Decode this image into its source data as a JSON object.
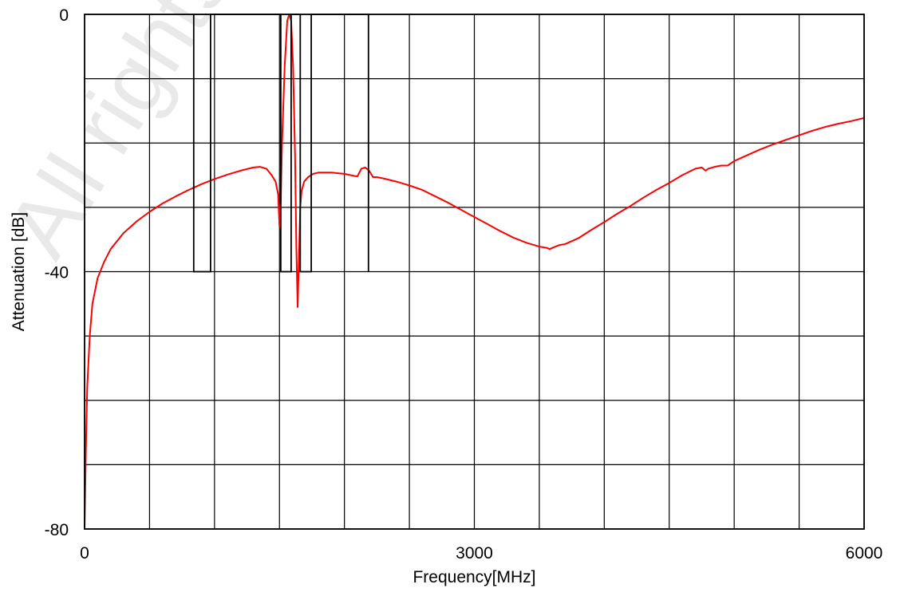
{
  "watermark": "All rights reserved",
  "chart_data": {
    "type": "line",
    "title": "",
    "xlabel": "Frequency[MHz]",
    "ylabel": "Attenuation [dB]",
    "xlim": [
      0,
      6000
    ],
    "ylim": [
      -80,
      0
    ],
    "x_ticks": [
      0,
      500,
      1000,
      1500,
      2000,
      2500,
      3000,
      3500,
      4000,
      4500,
      5000,
      5500,
      6000
    ],
    "x_tick_labels": [
      "0",
      "3000",
      "6000"
    ],
    "x_tick_label_values": [
      0,
      3000,
      6000
    ],
    "y_ticks": [
      -80,
      -70,
      -60,
      -50,
      -40,
      -30,
      -20,
      -10,
      0
    ],
    "y_tick_labels": [
      "-80",
      "-40",
      "0"
    ],
    "y_tick_label_values": [
      -80,
      -40,
      0
    ],
    "grid": true,
    "legend": "none",
    "series": [
      {
        "color": "#ff0000",
        "x": [
          0,
          10,
          20,
          40,
          60,
          100,
          150,
          200,
          300,
          400,
          500,
          600,
          700,
          800,
          900,
          1000,
          1100,
          1200,
          1300,
          1350,
          1400,
          1440,
          1470,
          1490,
          1500,
          1510,
          1520,
          1540,
          1560,
          1575,
          1590,
          1605,
          1620,
          1630,
          1640,
          1650,
          1660,
          1670,
          1690,
          1720,
          1760,
          1800,
          1850,
          1900,
          1950,
          2000,
          2050,
          2100,
          2130,
          2160,
          2190,
          2220,
          2250,
          2300,
          2400,
          2500,
          2600,
          2700,
          2800,
          2900,
          3000,
          3100,
          3200,
          3300,
          3400,
          3500,
          3560,
          3580,
          3600,
          3650,
          3700,
          3800,
          3900,
          4000,
          4100,
          4200,
          4300,
          4400,
          4500,
          4600,
          4700,
          4750,
          4780,
          4800,
          4850,
          4900,
          4950,
          5000,
          5100,
          5200,
          5300,
          5400,
          5500,
          5600,
          5700,
          5800,
          5900,
          6000
        ],
        "values": [
          -80,
          -68,
          -58,
          -50,
          -45,
          -41,
          -38.5,
          -36.5,
          -34,
          -32.2,
          -30.7,
          -29.4,
          -28.3,
          -27.3,
          -26.4,
          -25.6,
          -24.9,
          -24.3,
          -23.8,
          -23.7,
          -24.0,
          -25.0,
          -26.0,
          -28.0,
          -33.0,
          -29.0,
          -20.0,
          -8.0,
          -1.0,
          0.0,
          -1.0,
          -8.0,
          -22.0,
          -36.0,
          -45.5,
          -38.0,
          -30.0,
          -27.5,
          -26.0,
          -25.3,
          -24.8,
          -24.6,
          -24.6,
          -24.6,
          -24.7,
          -24.8,
          -25.0,
          -25.2,
          -24.0,
          -23.8,
          -24.3,
          -25.3,
          -25.3,
          -25.5,
          -26.0,
          -26.6,
          -27.3,
          -28.3,
          -29.3,
          -30.4,
          -31.5,
          -32.6,
          -33.7,
          -34.7,
          -35.5,
          -36.1,
          -36.3,
          -36.5,
          -36.3,
          -35.9,
          -35.7,
          -34.8,
          -33.5,
          -32.3,
          -31.0,
          -29.8,
          -28.5,
          -27.3,
          -26.2,
          -25.0,
          -24.0,
          -23.8,
          -24.3,
          -24.0,
          -23.7,
          -23.5,
          -23.5,
          -22.8,
          -21.9,
          -21.0,
          -20.2,
          -19.5,
          -18.8,
          -18.1,
          -17.5,
          -17.0,
          -16.6,
          -16.1
        ]
      },
      {
        "color": "#000000",
        "x": [
          840,
          840,
          970,
          970,
          1510,
          1510,
          1590,
          1590,
          1660,
          1660,
          1745,
          1745,
          2185,
          2185
        ],
        "values": [
          0,
          -40,
          -40,
          0,
          0,
          -40,
          -40,
          0,
          0,
          -40,
          -40,
          0,
          0,
          -40
        ]
      }
    ]
  }
}
